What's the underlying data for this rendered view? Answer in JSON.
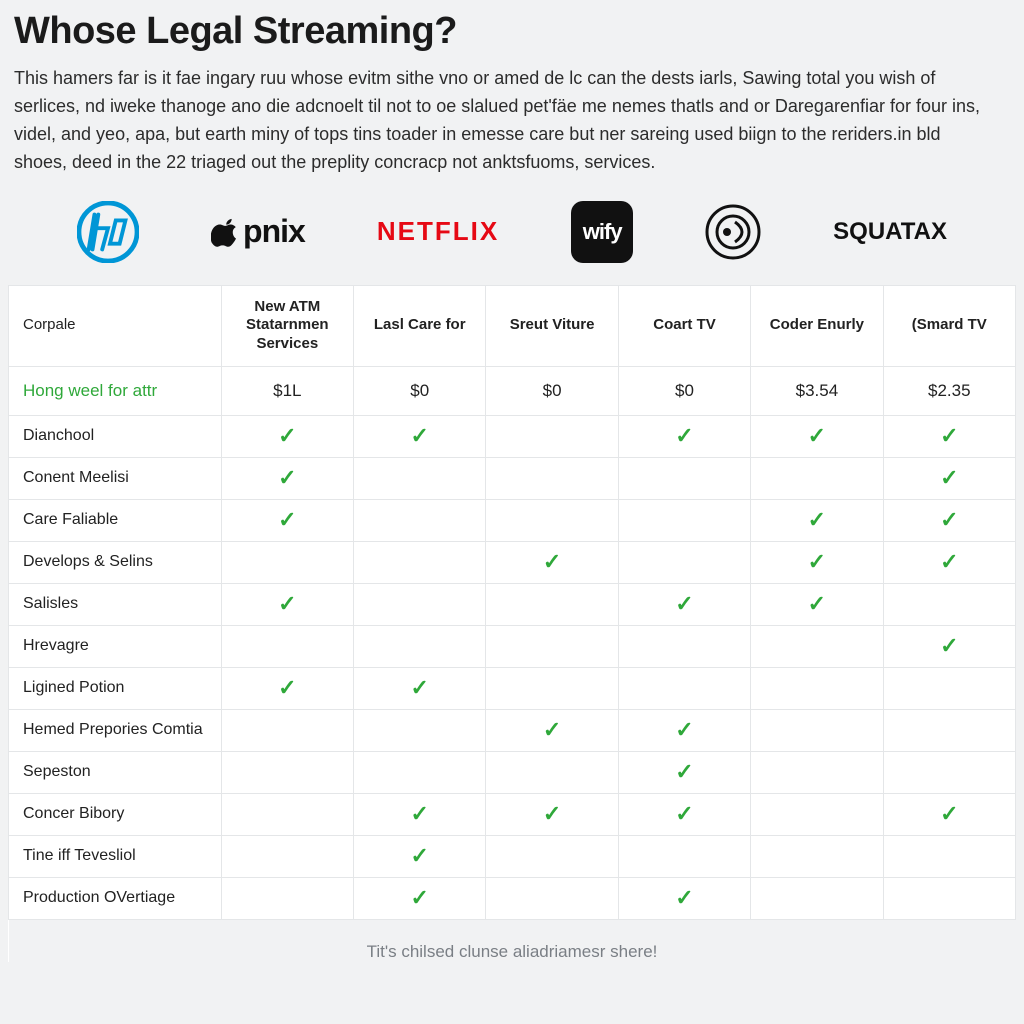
{
  "heading": "Whose Legal Streaming?",
  "intro": "This hamers far is it fae ingary ruu whose evitm sithe vno or amed de lc can the dests iarls, Sawing total you wish of serlices, nd iweke thanoge ano die adcnoelt til not to oe slalued pet'fäe me nemes thatls and or Daregarenfiar for four ins, videl, and yeo, apa, but earth miny of tops tins toader in emesse care but ner sareing used biign to the reriders.in bld shoes, deed in the 22 triaged out the preplity concracp not anktsfuoms, services.",
  "logos": {
    "hp": "hp",
    "pnix": "pnix",
    "netflix": "NETFLIX",
    "wify": "wify",
    "doll": "doll",
    "squatax": "SQUATAX"
  },
  "table": {
    "header_first": "Corpale",
    "columns": [
      "New ATM Statarnmen Services",
      "Lasl Care for",
      "Sreut Viture",
      "Coart TV",
      "Coder Enurly",
      "(Smard TV"
    ],
    "price_row": {
      "label": "Hong weel for attr",
      "values": [
        "$1L",
        "$0",
        "$0",
        "$0",
        "$3.54",
        "$2.35"
      ]
    },
    "feature_rows": [
      {
        "label": "Dianchool",
        "cells": [
          true,
          true,
          false,
          true,
          true,
          true
        ]
      },
      {
        "label": "Conent Meelisi",
        "cells": [
          true,
          false,
          false,
          false,
          false,
          true
        ]
      },
      {
        "label": "Care Faliable",
        "cells": [
          true,
          false,
          false,
          false,
          true,
          true
        ]
      },
      {
        "label": "Develops & Selins",
        "cells": [
          false,
          false,
          true,
          false,
          true,
          true
        ]
      },
      {
        "label": "Salisles",
        "cells": [
          true,
          false,
          false,
          true,
          true,
          false
        ]
      },
      {
        "label": "Hrevagre",
        "cells": [
          false,
          false,
          false,
          false,
          false,
          true
        ]
      },
      {
        "label": "Ligined Potion",
        "cells": [
          true,
          true,
          false,
          false,
          false,
          false
        ]
      },
      {
        "label": "Hemed Prepories Comtia",
        "cells": [
          false,
          false,
          true,
          true,
          false,
          false
        ]
      },
      {
        "label": "Sepeston",
        "cells": [
          false,
          false,
          false,
          true,
          false,
          false
        ]
      },
      {
        "label": "Concer Bibory",
        "cells": [
          false,
          true,
          true,
          true,
          false,
          true
        ]
      },
      {
        "label": "Tine iff Tevesliol",
        "cells": [
          false,
          true,
          false,
          false,
          false,
          false
        ]
      },
      {
        "label": "Production OVertiage",
        "cells": [
          false,
          true,
          false,
          true,
          false,
          false
        ]
      }
    ]
  },
  "footer": "Tit's chilsed clunse aliadriamesr shere!",
  "colors": {
    "check": "#2fa83a",
    "netflix": "#e60914",
    "hp": "#0096d6",
    "border": "#e4e6e8",
    "bg": "#f1f2f3"
  }
}
